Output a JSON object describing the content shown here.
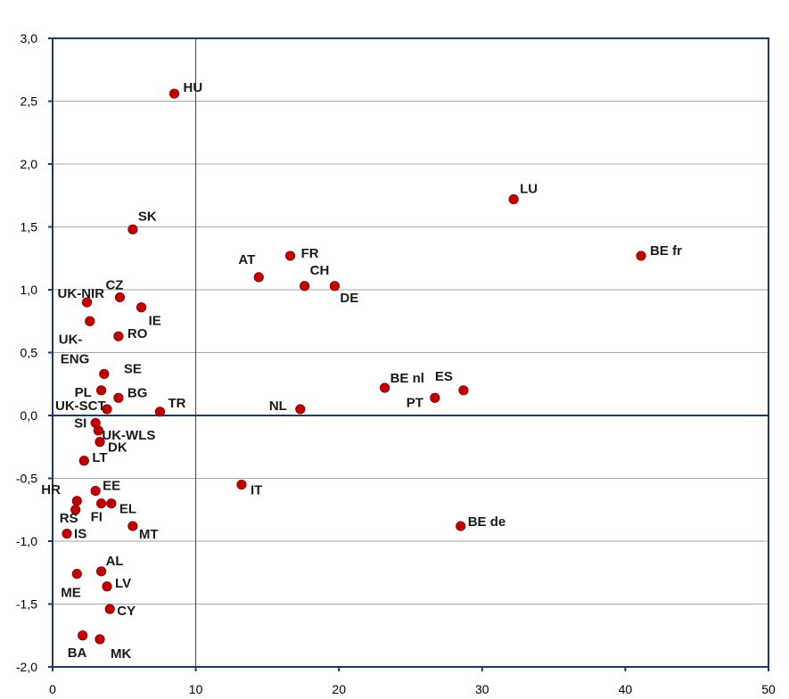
{
  "chart_data": {
    "type": "scatter",
    "xlim": [
      0,
      50
    ],
    "ylim": [
      -2.0,
      3.0
    ],
    "x_ticks": [
      "0",
      "10",
      "20",
      "30",
      "40",
      "50"
    ],
    "y_ticks": [
      "3,0",
      "2,5",
      "2,0",
      "1,5",
      "1,0",
      "0,5",
      "0,0",
      "-0,5",
      "-1,0",
      "-1,5",
      "-2,0"
    ],
    "grid": "horizontal",
    "reference_lines": {
      "x": 10,
      "y": 0
    },
    "colors": {
      "point": "#c00000",
      "point_stroke": "#8b0000",
      "axis": "#1f3864",
      "grid": "#a6a6a6"
    },
    "points": [
      {
        "label": "HU",
        "x": 8.5,
        "y": 2.56
      },
      {
        "label": "LU",
        "x": 32.2,
        "y": 1.72
      },
      {
        "label": "SK",
        "x": 5.6,
        "y": 1.48
      },
      {
        "label": "FR",
        "x": 16.6,
        "y": 1.27
      },
      {
        "label": "BE fr",
        "x": 41.1,
        "y": 1.27
      },
      {
        "label": "AT",
        "x": 14.4,
        "y": 1.1
      },
      {
        "label": "CH",
        "x": 17.6,
        "y": 1.03
      },
      {
        "label": "DE",
        "x": 19.7,
        "y": 1.03
      },
      {
        "label": "CZ",
        "x": 4.7,
        "y": 0.94
      },
      {
        "label": "UK-NIR",
        "x": 2.4,
        "y": 0.9
      },
      {
        "label": "IE",
        "x": 6.2,
        "y": 0.86
      },
      {
        "label": "UK-ENG",
        "x": 2.6,
        "y": 0.75
      },
      {
        "label": "RO",
        "x": 4.6,
        "y": 0.63
      },
      {
        "label": "SE",
        "x": 3.6,
        "y": 0.33
      },
      {
        "label": "BE nl",
        "x": 23.2,
        "y": 0.22
      },
      {
        "label": "ES",
        "x": 28.7,
        "y": 0.2
      },
      {
        "label": "PL",
        "x": 3.4,
        "y": 0.2
      },
      {
        "label": "BG",
        "x": 4.6,
        "y": 0.14
      },
      {
        "label": "PT",
        "x": 26.7,
        "y": 0.14
      },
      {
        "label": "NL",
        "x": 17.3,
        "y": 0.05
      },
      {
        "label": "UK-SCT",
        "x": 3.8,
        "y": 0.05
      },
      {
        "label": "TR",
        "x": 7.5,
        "y": 0.03
      },
      {
        "label": "SI",
        "x": 3.0,
        "y": -0.06
      },
      {
        "label": "UK-WLS",
        "x": 3.2,
        "y": -0.12
      },
      {
        "label": "DK",
        "x": 3.3,
        "y": -0.21
      },
      {
        "label": "LT",
        "x": 2.2,
        "y": -0.36
      },
      {
        "label": "IT",
        "x": 13.2,
        "y": -0.55
      },
      {
        "label": "EE",
        "x": 3.0,
        "y": -0.6
      },
      {
        "label": "HR",
        "x": 1.7,
        "y": -0.68
      },
      {
        "label": "EL",
        "x": 4.1,
        "y": -0.7
      },
      {
        "label": "FI",
        "x": 3.4,
        "y": -0.7
      },
      {
        "label": "RS",
        "x": 1.6,
        "y": -0.75
      },
      {
        "label": "BE de",
        "x": 28.5,
        "y": -0.88
      },
      {
        "label": "MT",
        "x": 5.6,
        "y": -0.88
      },
      {
        "label": "IS",
        "x": 1.0,
        "y": -0.94
      },
      {
        "label": "AL",
        "x": 3.4,
        "y": -1.24
      },
      {
        "label": "ME",
        "x": 1.7,
        "y": -1.26
      },
      {
        "label": "LV",
        "x": 3.8,
        "y": -1.36
      },
      {
        "label": "CY",
        "x": 4.0,
        "y": -1.54
      },
      {
        "label": "BA",
        "x": 2.1,
        "y": -1.75
      },
      {
        "label": "MK",
        "x": 3.3,
        "y": -1.78
      }
    ]
  }
}
